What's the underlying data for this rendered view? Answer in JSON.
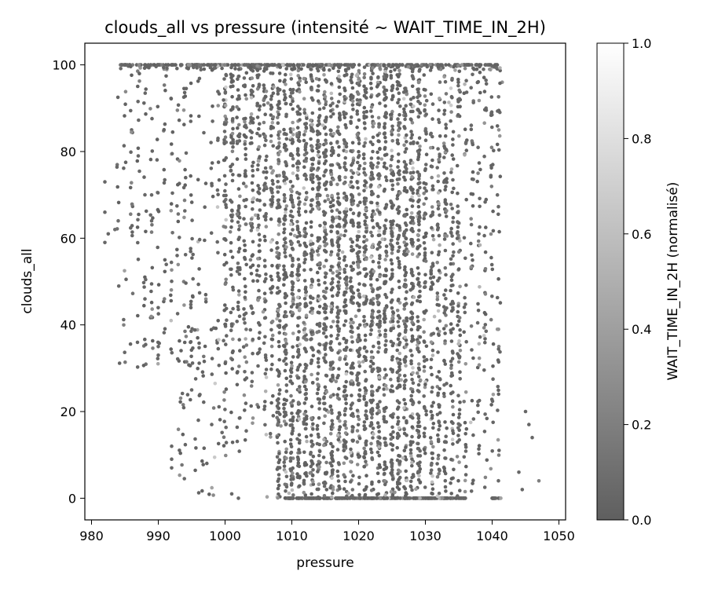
{
  "chart_data": {
    "type": "scatter",
    "title": "clouds_all vs pressure (intensité ~ WAIT_TIME_IN_2H)",
    "xlabel": "pressure",
    "ylabel": "clouds_all",
    "xlim": [
      979,
      1051
    ],
    "ylim": [
      -5,
      105
    ],
    "x_ticks": [
      980,
      990,
      1000,
      1010,
      1020,
      1030,
      1040,
      1050
    ],
    "y_ticks": [
      0,
      20,
      40,
      60,
      80,
      100
    ],
    "grid": false,
    "colorbar": {
      "label": "WAIT_TIME_IN_2H (normalisé)",
      "range": [
        0.0,
        1.0
      ],
      "ticks": [
        "0.0",
        "0.2",
        "0.4",
        "0.6",
        "0.8",
        "1.0"
      ],
      "colormap": "greys (dark to white)",
      "color_low": "#5f5f5f",
      "color_high": "#ffffff"
    },
    "point_density_by_pressure": [
      {
        "pressure_range": [
          982,
          990
        ],
        "density": "sparse"
      },
      {
        "pressure_range": [
          990,
          1000
        ],
        "density": "medium"
      },
      {
        "pressure_range": [
          1000,
          1008
        ],
        "density": "high"
      },
      {
        "pressure_range": [
          1008,
          1036
        ],
        "density": "very high (dense vertical columns at integer pressures)"
      },
      {
        "pressure_range": [
          1036,
          1042
        ],
        "density": "medium"
      },
      {
        "pressure_range": [
          1044,
          1047
        ],
        "density": "sparse"
      }
    ],
    "notes": [
      "Dense horizontal band of points at clouds_all = 100 from ~984 to ~1041",
      "Dense horizontal band of points at clouds_all = 0 from ~1009 to ~1036 and ~1040 to ~1041",
      "Most points have low normalized intensity (dark)"
    ],
    "sample_points": [
      {
        "x": 982,
        "y": 73,
        "c": 0.05
      },
      {
        "x": 982,
        "y": 66,
        "c": 0.05
      },
      {
        "x": 982.5,
        "y": 61,
        "c": 0.05
      },
      {
        "x": 982,
        "y": 59,
        "c": 0.05
      },
      {
        "x": 983.5,
        "y": 62,
        "c": 0.1
      },
      {
        "x": 984,
        "y": 64,
        "c": 0.1
      },
      {
        "x": 984.5,
        "y": 100,
        "c": 0.05
      },
      {
        "x": 986,
        "y": 85,
        "c": 0.05
      },
      {
        "x": 987,
        "y": 79,
        "c": 0.05
      },
      {
        "x": 988,
        "y": 70,
        "c": 0.05
      },
      {
        "x": 988,
        "y": 46,
        "c": 0.05
      },
      {
        "x": 989,
        "y": 64,
        "c": 0.05
      },
      {
        "x": 990,
        "y": 35,
        "c": 0.05
      },
      {
        "x": 990,
        "y": 33,
        "c": 0.05
      },
      {
        "x": 992,
        "y": 12,
        "c": 0.05
      },
      {
        "x": 992,
        "y": 9,
        "c": 0.05
      },
      {
        "x": 992,
        "y": 7,
        "c": 0.05
      },
      {
        "x": 995,
        "y": 25,
        "c": 0.05
      },
      {
        "x": 996,
        "y": 18,
        "c": 0.05
      },
      {
        "x": 998,
        "y": 17,
        "c": 0.05
      },
      {
        "x": 1001,
        "y": 1,
        "c": 0.05
      },
      {
        "x": 1002,
        "y": 0,
        "c": 0.05
      },
      {
        "x": 1045,
        "y": 20,
        "c": 0.05
      },
      {
        "x": 1045.5,
        "y": 17,
        "c": 0.05
      },
      {
        "x": 1046,
        "y": 14,
        "c": 0.05
      },
      {
        "x": 1044,
        "y": 6,
        "c": 0.05
      },
      {
        "x": 1044.5,
        "y": 2,
        "c": 0.05
      },
      {
        "x": 1047,
        "y": 4,
        "c": 0.2
      },
      {
        "x": 1041.5,
        "y": 96,
        "c": 0.3
      },
      {
        "x": 1041,
        "y": 85,
        "c": 0.3
      },
      {
        "x": 1041,
        "y": 35,
        "c": 0.2
      },
      {
        "x": 1040,
        "y": 0,
        "c": 0.05
      },
      {
        "x": 1041,
        "y": 0,
        "c": 0.05
      }
    ]
  }
}
